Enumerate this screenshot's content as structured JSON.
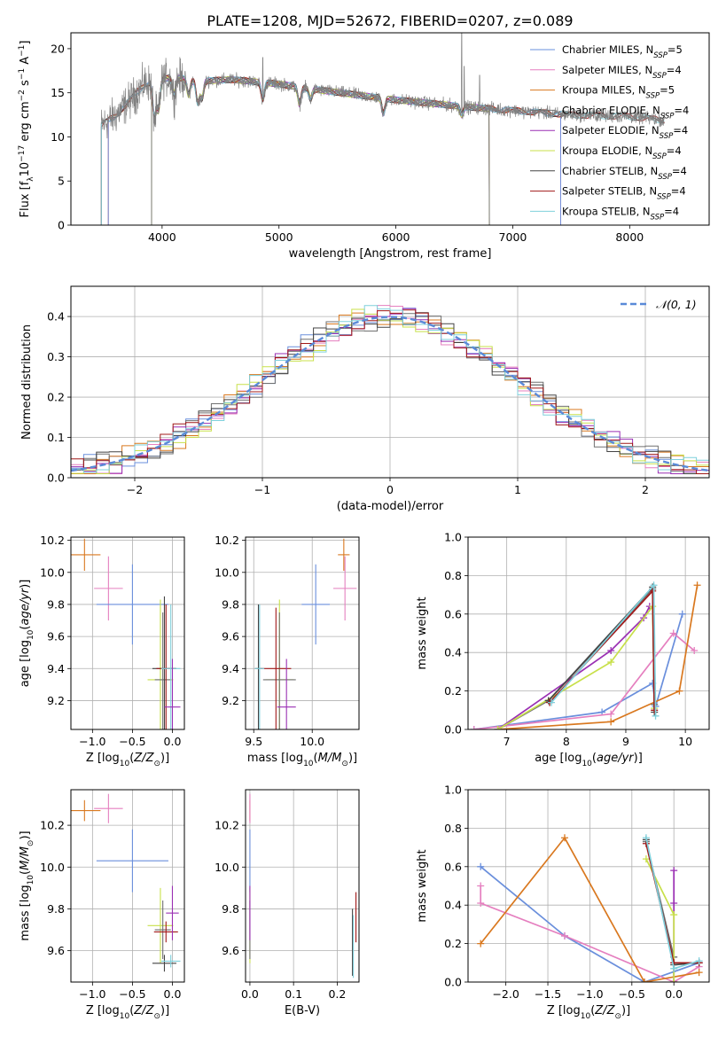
{
  "figure_title": "PLATE=1208, MJD=52672, FIBERID=0207, z=0.089",
  "colors": {
    "Chabrier MILES": "#6a8fdc",
    "Salpeter MILES": "#e57fbf",
    "Kroupa MILES": "#d9781f",
    "Chabrier ELODIE": "#707070",
    "Salpeter ELODIE": "#9a2fb3",
    "Kroupa ELODIE": "#c8e04a",
    "Chabrier STELIB": "#444444",
    "Salpeter STELIB": "#a01818",
    "Kroupa STELIB": "#7fd0dc"
  },
  "chart_data": [
    {
      "id": "spectrum",
      "type": "line",
      "title": "PLATE=1208, MJD=52672, FIBERID=0207, z=0.089",
      "xlabel": "wavelength [Angstrom, rest frame]",
      "ylabel": "Flux [f_λ 10^-17 erg cm^-2 s^-1 A^-1]",
      "xlim": [
        3220,
        8680
      ],
      "ylim": [
        0,
        21.8
      ],
      "xticks": [
        4000,
        5000,
        6000,
        7000,
        8000
      ],
      "yticks": [
        0,
        5,
        10,
        15,
        20
      ],
      "legend_position": "top-right",
      "legend": [
        {
          "model": "Chabrier MILES",
          "n": "5"
        },
        {
          "model": "Salpeter MILES",
          "n": "4"
        },
        {
          "model": "Kroupa MILES",
          "n": "5"
        },
        {
          "model": "Chabrier ELODIE",
          "n": "4"
        },
        {
          "model": "Salpeter ELODIE",
          "n": "4"
        },
        {
          "model": "Kroupa ELODIE",
          "n": "4"
        },
        {
          "model": "Chabrier STELIB",
          "n": "4"
        },
        {
          "model": "Salpeter STELIB",
          "n": "4"
        },
        {
          "model": "Kroupa STELIB",
          "n": "4"
        }
      ],
      "continuum": [
        [
          3480,
          11.3
        ],
        [
          3600,
          12.4
        ],
        [
          3750,
          14.5
        ],
        [
          3850,
          16.0
        ],
        [
          3950,
          16.4
        ],
        [
          4100,
          16.8
        ],
        [
          4300,
          16.3
        ],
        [
          4600,
          16.5
        ],
        [
          5000,
          16.0
        ],
        [
          5300,
          15.4
        ],
        [
          5700,
          14.7
        ],
        [
          6000,
          14.2
        ],
        [
          6300,
          13.8
        ],
        [
          6600,
          13.4
        ],
        [
          7000,
          13.0
        ],
        [
          7500,
          12.5
        ],
        [
          8000,
          12.3
        ],
        [
          8300,
          11.9
        ]
      ],
      "absorption_lines": [
        [
          3934,
          4.2
        ],
        [
          3969,
          3.5
        ],
        [
          4102,
          2.0
        ],
        [
          4227,
          1.8
        ],
        [
          4305,
          2.5
        ],
        [
          4341,
          2.0
        ],
        [
          4861,
          2.0
        ],
        [
          5175,
          2.0
        ],
        [
          5270,
          1.2
        ],
        [
          5893,
          1.8
        ],
        [
          6563,
          1.0
        ]
      ],
      "emission_spikes": [
        [
          6562,
          21.8
        ],
        [
          6585,
          18.0
        ],
        [
          4861,
          19.0
        ],
        [
          6717,
          17.0
        ]
      ],
      "model_edges": [
        {
          "model": "Kroupa MILES",
          "range": [
            3540,
            7410
          ]
        },
        {
          "model": "Salpeter MILES",
          "range": [
            3540,
            7410
          ]
        },
        {
          "model": "Chabrier MILES",
          "range": [
            3540,
            7410
          ]
        },
        {
          "model": "Kroupa ELODIE",
          "range": [
            3910,
            6800
          ]
        },
        {
          "model": "Salpeter ELODIE",
          "range": [
            3910,
            6800
          ]
        },
        {
          "model": "Chabrier ELODIE",
          "range": [
            3910,
            6800
          ]
        }
      ]
    },
    {
      "id": "residual_histogram",
      "type": "line",
      "xlabel": "(data-model)/error",
      "ylabel": "Normed distribution",
      "xlim": [
        -2.5,
        2.5
      ],
      "ylim": [
        0,
        0.475
      ],
      "xticks": [
        -2,
        -1,
        0,
        1,
        2
      ],
      "yticks": [
        0.0,
        0.1,
        0.2,
        0.3,
        0.4
      ],
      "grid": true,
      "legend_position": "top-right",
      "legend": [
        {
          "label": "𝒩(0, 1)",
          "style": "dashed",
          "color": "#5a8ad8"
        }
      ],
      "bin_width": 0.1
    },
    {
      "id": "age_vs_Z",
      "type": "scatter",
      "xlabel": "Z [log10(Z/Z⊙)]",
      "ylabel": "age [log10(age/yr)]",
      "xlim": [
        -1.27,
        0.15
      ],
      "ylim": [
        9.02,
        10.22
      ],
      "xticks": [
        -1.0,
        -0.5,
        0.0
      ],
      "yticks": [
        9.2,
        9.4,
        9.6,
        9.8,
        10.0,
        10.2
      ],
      "grid": true,
      "points": [
        {
          "model": "Kroupa MILES",
          "x": -1.1,
          "y": 10.11,
          "xerr": 0.2,
          "yerr": 0.1
        },
        {
          "model": "Salpeter MILES",
          "x": -0.8,
          "y": 9.9,
          "xerr": 0.18,
          "yerr": 0.2
        },
        {
          "model": "Chabrier MILES",
          "x": -0.5,
          "y": 9.8,
          "xerr": 0.45,
          "yerr": 0.25
        },
        {
          "model": "Kroupa ELODIE",
          "x": -0.15,
          "y": 9.33,
          "xerr": 0.16,
          "yerr": 0.5
        },
        {
          "model": "Chabrier ELODIE",
          "x": -0.12,
          "y": 9.33,
          "xerr": 0.1,
          "yerr": 0.42
        },
        {
          "model": "Chabrier STELIB",
          "x": -0.1,
          "y": 9.4,
          "xerr": 0.15,
          "yerr": 0.45
        },
        {
          "model": "Salpeter STELIB",
          "x": -0.08,
          "y": 9.4,
          "xerr": 0.12,
          "yerr": 0.4
        },
        {
          "model": "Kroupa STELIB",
          "x": -0.02,
          "y": 9.4,
          "xerr": 0.12,
          "yerr": 0.4
        },
        {
          "model": "Salpeter ELODIE",
          "x": 0.0,
          "y": 9.16,
          "xerr": 0.1,
          "yerr": 0.3
        }
      ]
    },
    {
      "id": "age_vs_mass",
      "type": "scatter",
      "xlabel": "mass [log10(M/M⊙)]",
      "ylabel": "",
      "xlim": [
        9.43,
        10.4
      ],
      "ylim": [
        9.02,
        10.22
      ],
      "xticks": [
        9.5,
        10.0
      ],
      "yticks": [
        9.2,
        9.4,
        9.6,
        9.8,
        10.0,
        10.2
      ],
      "grid": true,
      "points": [
        {
          "model": "Kroupa MILES",
          "x": 10.27,
          "y": 10.11,
          "xerr": 0.05,
          "yerr": 0.1
        },
        {
          "model": "Salpeter MILES",
          "x": 10.28,
          "y": 9.9,
          "xerr": 0.1,
          "yerr": 0.2
        },
        {
          "model": "Chabrier MILES",
          "x": 10.03,
          "y": 9.8,
          "xerr": 0.12,
          "yerr": 0.25
        },
        {
          "model": "Kroupa ELODIE",
          "x": 9.72,
          "y": 9.33,
          "xerr": 0.12,
          "yerr": 0.5
        },
        {
          "model": "Chabrier ELODIE",
          "x": 9.72,
          "y": 9.33,
          "xerr": 0.14,
          "yerr": 0.42
        },
        {
          "model": "Chabrier STELIB",
          "x": 9.54,
          "y": 9.4,
          "xerr": 0.03,
          "yerr": 0.4
        },
        {
          "model": "Salpeter STELIB",
          "x": 9.69,
          "y": 9.4,
          "xerr": 0.13,
          "yerr": 0.38
        },
        {
          "model": "Kroupa STELIB",
          "x": 9.55,
          "y": 9.4,
          "xerr": 0.04,
          "yerr": 0.4
        },
        {
          "model": "Salpeter ELODIE",
          "x": 9.78,
          "y": 9.16,
          "xerr": 0.08,
          "yerr": 0.3
        }
      ]
    },
    {
      "id": "mass_weight_vs_age",
      "type": "line",
      "xlabel": "age [log10(age/yr)]",
      "ylabel": "mass weight",
      "xlim": [
        6.35,
        10.4
      ],
      "ylim": [
        0,
        1.0
      ],
      "xticks": [
        7,
        8,
        9,
        10
      ],
      "yticks": [
        0.0,
        0.2,
        0.4,
        0.6,
        0.8,
        1.0
      ],
      "grid": true,
      "series": [
        {
          "model": "Chabrier MILES",
          "points": [
            [
              6.45,
              0.0
            ],
            [
              8.6,
              0.09
            ],
            [
              9.45,
              0.24
            ],
            [
              9.5,
              0.12
            ],
            [
              9.95,
              0.6
            ]
          ]
        },
        {
          "model": "Salpeter MILES",
          "points": [
            [
              6.45,
              0.0
            ],
            [
              8.75,
              0.08
            ],
            [
              9.8,
              0.5
            ],
            [
              10.15,
              0.41
            ]
          ]
        },
        {
          "model": "Kroupa MILES",
          "points": [
            [
              6.85,
              0.0
            ],
            [
              8.75,
              0.04
            ],
            [
              9.9,
              0.2
            ],
            [
              10.2,
              0.75
            ]
          ]
        },
        {
          "model": "Chabrier ELODIE",
          "points": [
            [
              6.85,
              0.0
            ],
            [
              7.7,
              0.15
            ],
            [
              9.45,
              0.73
            ],
            [
              9.48,
              0.13
            ]
          ]
        },
        {
          "model": "Salpeter ELODIE",
          "points": [
            [
              6.85,
              0.0
            ],
            [
              8.75,
              0.41
            ],
            [
              9.3,
              0.58
            ],
            [
              9.4,
              0.64
            ]
          ]
        },
        {
          "model": "Kroupa ELODIE",
          "points": [
            [
              6.85,
              0.0
            ],
            [
              8.75,
              0.35
            ],
            [
              9.45,
              0.64
            ],
            [
              9.48,
              0.11
            ]
          ]
        },
        {
          "model": "Chabrier STELIB",
          "points": [
            [
              7.7,
              0.15
            ],
            [
              9.45,
              0.74
            ],
            [
              9.48,
              0.09
            ]
          ]
        },
        {
          "model": "Salpeter STELIB",
          "points": [
            [
              7.72,
              0.14
            ],
            [
              9.45,
              0.72
            ],
            [
              9.48,
              0.1
            ]
          ]
        },
        {
          "model": "Kroupa STELIB",
          "points": [
            [
              7.75,
              0.14
            ],
            [
              9.47,
              0.75
            ],
            [
              9.5,
              0.07
            ]
          ]
        }
      ]
    },
    {
      "id": "mass_vs_Z",
      "type": "scatter",
      "xlabel": "Z [log10(Z/Z⊙)]",
      "ylabel": "mass [log10(M/M⊙)]",
      "xlim": [
        -1.27,
        0.15
      ],
      "ylim": [
        9.45,
        10.37
      ],
      "xticks": [
        -1.0,
        -0.5,
        0.0
      ],
      "yticks": [
        9.6,
        9.8,
        10.0,
        10.2
      ],
      "grid": true,
      "points": [
        {
          "model": "Kroupa MILES",
          "x": -1.1,
          "y": 10.27,
          "xerr": 0.2,
          "yerr": 0.05
        },
        {
          "model": "Salpeter MILES",
          "x": -0.8,
          "y": 10.28,
          "xerr": 0.18,
          "yerr": 0.07
        },
        {
          "model": "Chabrier MILES",
          "x": -0.5,
          "y": 10.03,
          "xerr": 0.45,
          "yerr": 0.15
        },
        {
          "model": "Kroupa ELODIE",
          "x": -0.15,
          "y": 9.72,
          "xerr": 0.16,
          "yerr": 0.18
        },
        {
          "model": "Chabrier ELODIE",
          "x": -0.12,
          "y": 9.7,
          "xerr": 0.1,
          "yerr": 0.14
        },
        {
          "model": "Chabrier STELIB",
          "x": -0.1,
          "y": 9.54,
          "xerr": 0.15,
          "yerr": 0.04
        },
        {
          "model": "Salpeter STELIB",
          "x": -0.08,
          "y": 9.69,
          "xerr": 0.15,
          "yerr": 0.05
        },
        {
          "model": "Kroupa STELIB",
          "x": -0.02,
          "y": 9.55,
          "xerr": 0.12,
          "yerr": 0.03
        },
        {
          "model": "Salpeter ELODIE",
          "x": 0.0,
          "y": 9.78,
          "xerr": 0.08,
          "yerr": 0.13
        }
      ]
    },
    {
      "id": "mass_vs_EBV",
      "type": "scatter",
      "xlabel": "E(B-V)",
      "ylabel": "",
      "xlim": [
        -0.01,
        0.25
      ],
      "ylim": [
        9.45,
        10.37
      ],
      "xticks": [
        0.0,
        0.1,
        0.2
      ],
      "yticks": [
        9.6,
        9.8,
        10.0,
        10.2
      ],
      "grid": true,
      "points": [
        {
          "model": "Kroupa MILES",
          "x": 0.0,
          "y": 10.27,
          "yerr": 0.05
        },
        {
          "model": "Salpeter MILES",
          "x": 0.0,
          "y": 10.28,
          "yerr": 0.07
        },
        {
          "model": "Chabrier MILES",
          "x": 0.0,
          "y": 10.03,
          "yerr": 0.15
        },
        {
          "model": "Kroupa ELODIE",
          "x": 0.0,
          "y": 9.72,
          "yerr": 0.18
        },
        {
          "model": "Chabrier ELODIE",
          "x": 0.0,
          "y": 9.7,
          "yerr": 0.14
        },
        {
          "model": "Salpeter ELODIE",
          "x": 0.0,
          "y": 9.78,
          "yerr": 0.13
        },
        {
          "model": "Chabrier STELIB",
          "x": 0.235,
          "y": 9.64,
          "yerr": 0.16
        },
        {
          "model": "Kroupa STELIB",
          "x": 0.237,
          "y": 9.62,
          "yerr": 0.15
        },
        {
          "model": "Salpeter STELIB",
          "x": 0.243,
          "y": 9.76,
          "yerr": 0.12
        }
      ]
    },
    {
      "id": "mass_weight_vs_Z",
      "type": "line",
      "xlabel": "Z [log10(Z/Z⊙)]",
      "ylabel": "mass weight",
      "xlim": [
        -2.45,
        0.42
      ],
      "ylim": [
        0,
        1.0
      ],
      "xticks": [
        -2.0,
        -1.5,
        -1.0,
        -0.5,
        0.0
      ],
      "yticks": [
        0.0,
        0.2,
        0.4,
        0.6,
        0.8,
        1.0
      ],
      "grid": true,
      "series": [
        {
          "model": "Chabrier MILES",
          "points": [
            [
              -2.3,
              0.6
            ],
            [
              -1.3,
              0.24
            ],
            [
              -0.35,
              0.0
            ],
            [
              0.3,
              0.1
            ]
          ]
        },
        {
          "model": "Salpeter MILES",
          "points": [
            [
              -2.3,
              0.5
            ],
            [
              -2.3,
              0.41
            ],
            [
              -1.3,
              0.24
            ],
            [
              0.0,
              0.0
            ],
            [
              0.3,
              0.08
            ]
          ]
        },
        {
          "model": "Kroupa MILES",
          "points": [
            [
              -2.3,
              0.2
            ],
            [
              -1.3,
              0.75
            ],
            [
              -0.35,
              0.0
            ],
            [
              0.3,
              0.05
            ]
          ]
        },
        {
          "model": "Chabrier ELODIE",
          "points": [
            [
              -0.33,
              0.73
            ],
            [
              0.0,
              0.13
            ],
            [
              0.0,
              0.0
            ]
          ]
        },
        {
          "model": "Salpeter ELODIE",
          "points": [
            [
              0.0,
              0.58
            ],
            [
              0.0,
              0.41
            ],
            [
              0.0,
              0.0
            ]
          ]
        },
        {
          "model": "Kroupa ELODIE",
          "points": [
            [
              -0.33,
              0.64
            ],
            [
              0.0,
              0.35
            ],
            [
              0.0,
              0.0
            ]
          ]
        },
        {
          "model": "Chabrier STELIB",
          "points": [
            [
              -0.33,
              0.74
            ],
            [
              0.0,
              0.09
            ],
            [
              0.3,
              0.1
            ]
          ]
        },
        {
          "model": "Salpeter STELIB",
          "points": [
            [
              -0.33,
              0.72
            ],
            [
              0.0,
              0.1
            ],
            [
              0.3,
              0.1
            ]
          ]
        },
        {
          "model": "Kroupa STELIB",
          "points": [
            [
              -0.33,
              0.75
            ],
            [
              0.0,
              0.07
            ],
            [
              0.3,
              0.11
            ]
          ]
        }
      ]
    }
  ]
}
